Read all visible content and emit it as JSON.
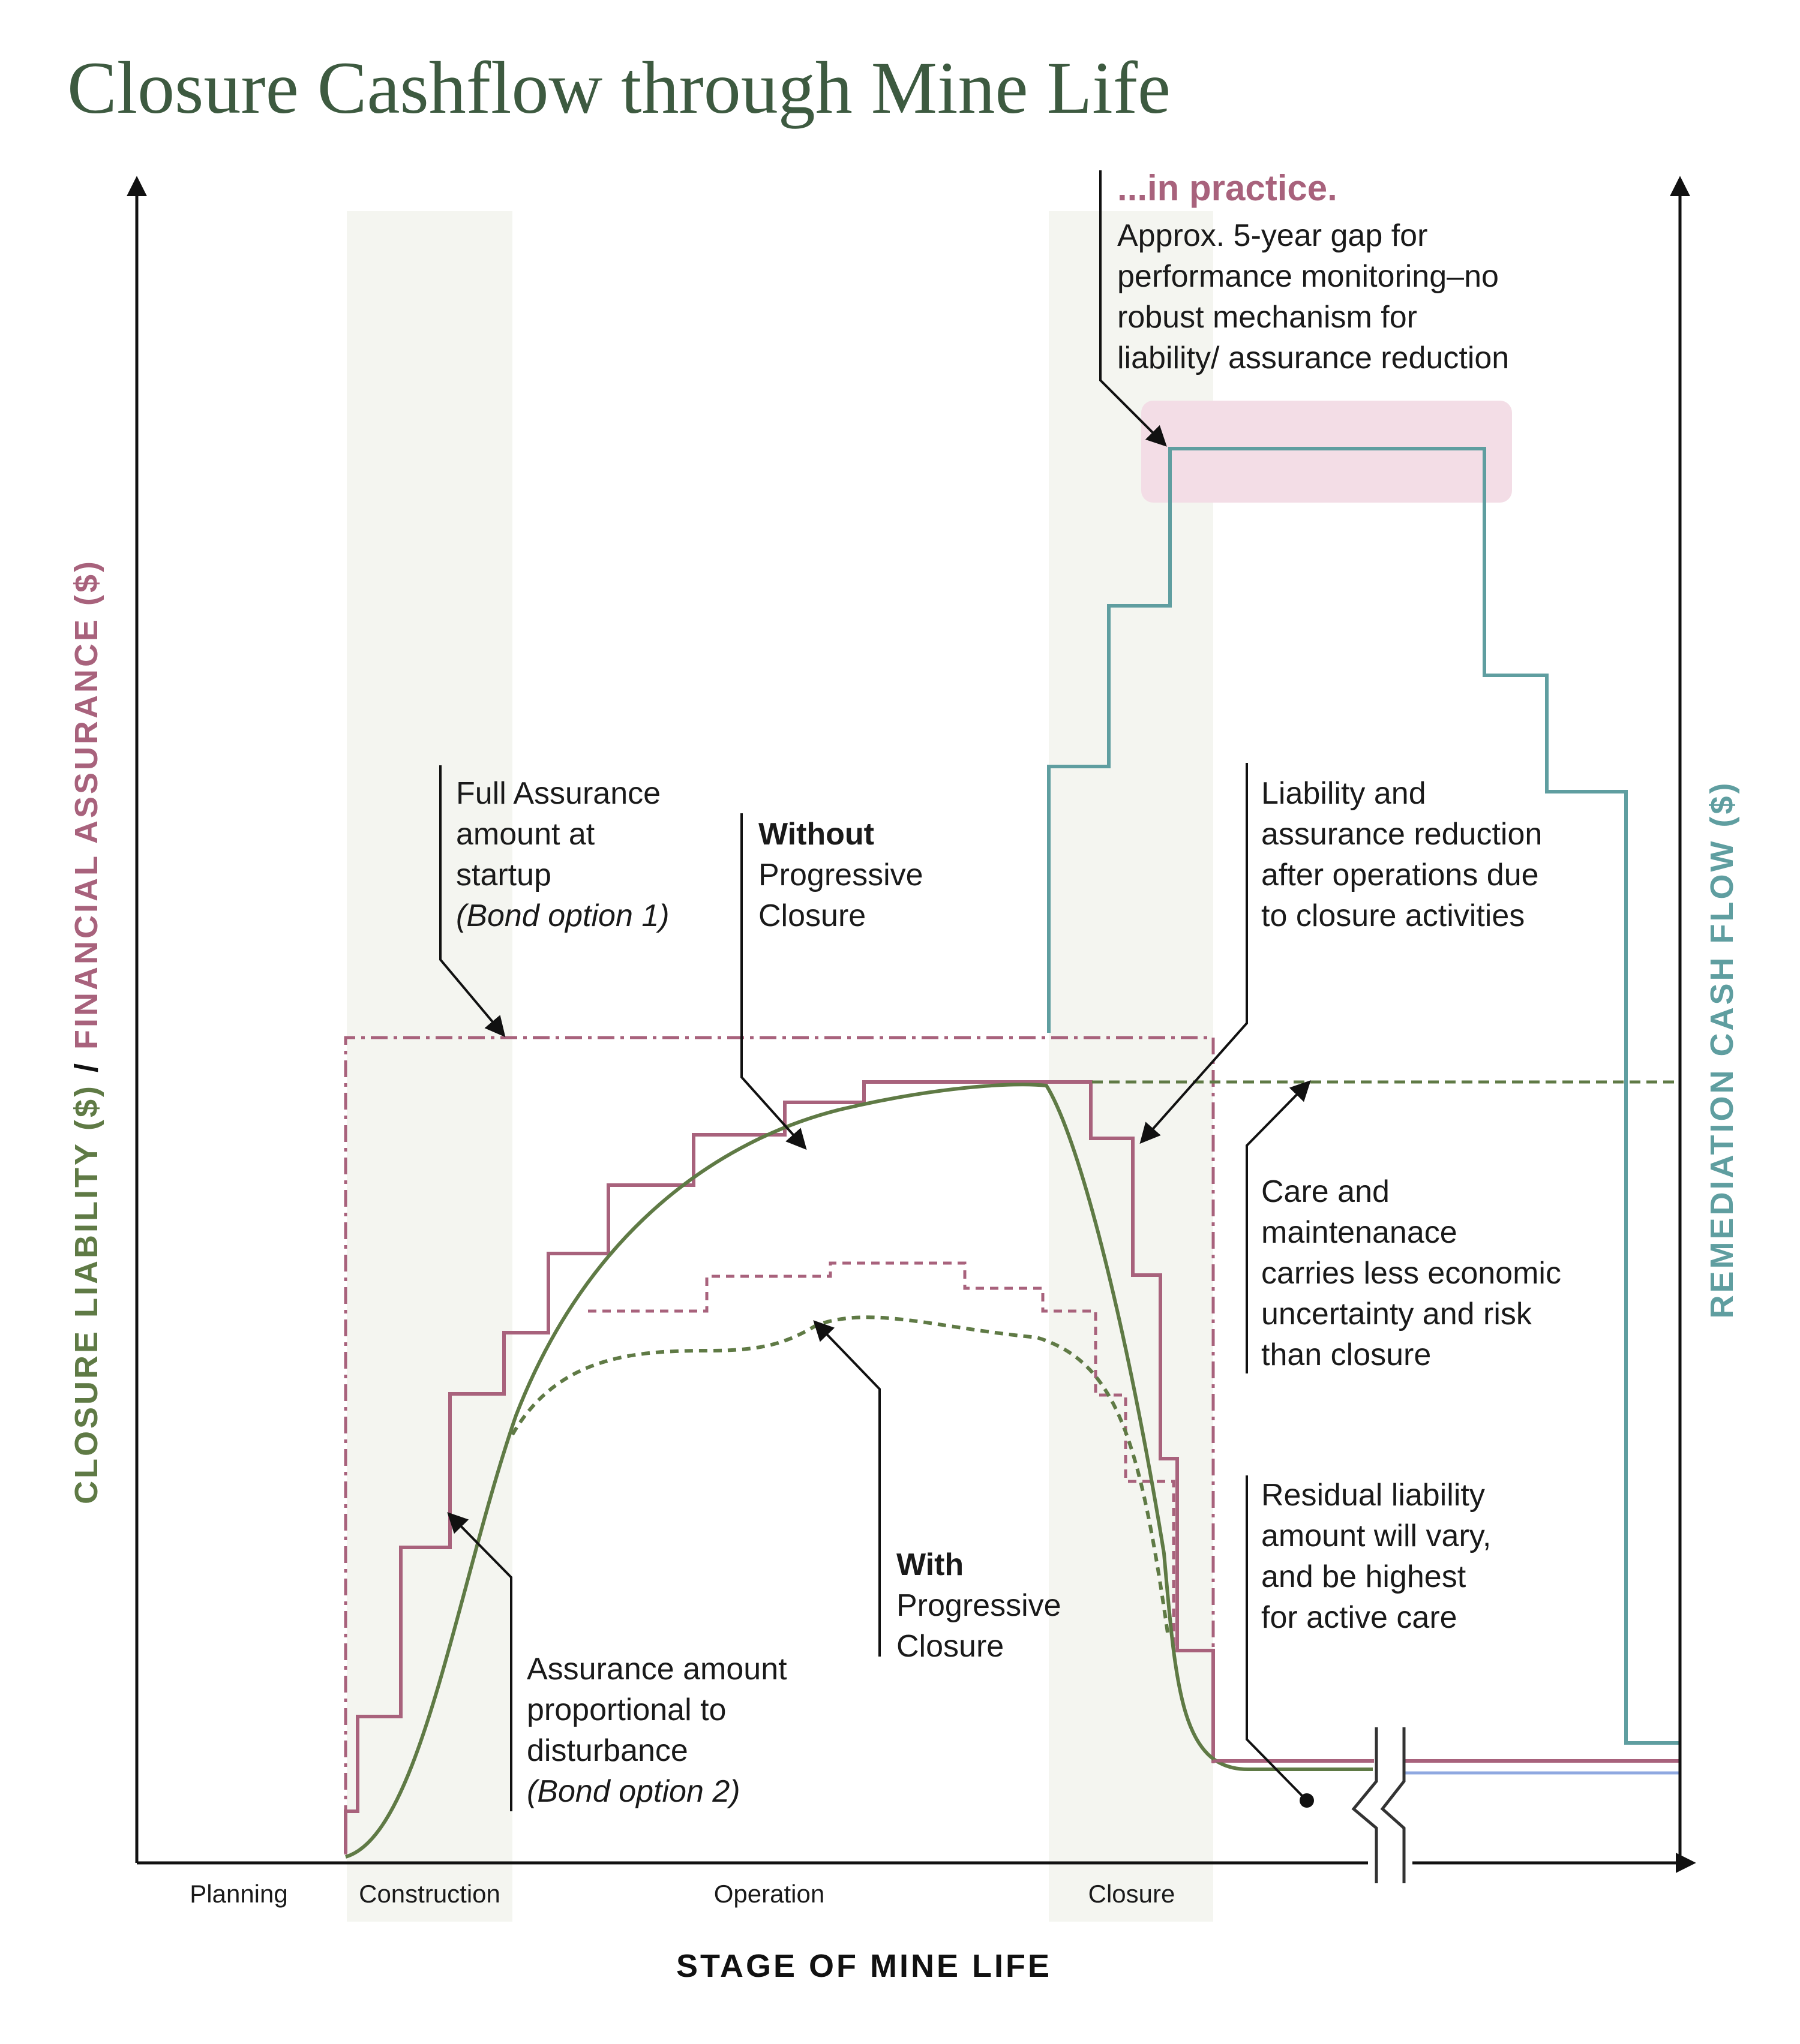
{
  "title": "Closure Cashflow through Mine Life",
  "colors": {
    "title": "#3d5a40",
    "liability_green": "#5f7a45",
    "assurance_mauve": "#a8627c",
    "remediation_teal": "#5f9ea0",
    "highlight_pink": "#f3dde6",
    "shade": "#f4f5f0",
    "practice_mauve": "#a8627c",
    "residual_blue": "#8fa8e0"
  },
  "axes": {
    "y_left_part1": "CLOSURE LIABILITY ($)",
    "y_left_sep": " / ",
    "y_left_part2": "FINANCIAL ASSURANCE ($)",
    "y_right": "REMEDIATION CASH FLOW ($)",
    "x": "STAGE OF MINE LIFE"
  },
  "stages": [
    "Planning",
    "Construction",
    "Operation",
    "Closure"
  ],
  "annotations": {
    "practice": {
      "heading": "...in practice.",
      "lines": [
        "Approx. 5-year gap for",
        "performance monitoring–no",
        "robust mechanism for",
        "liability/ assurance reduction"
      ]
    },
    "full_assurance": {
      "lines": [
        "Full Assurance",
        "amount at",
        "startup"
      ],
      "italic": "(Bond option 1)"
    },
    "without": {
      "bold": "Without",
      "lines": [
        "Progressive",
        "Closure"
      ]
    },
    "reduction": {
      "lines": [
        "Liability and",
        "assurance reduction",
        "after operations due",
        "to closure activities"
      ]
    },
    "care": {
      "lines": [
        "Care and",
        "maintenanace",
        "carries less economic",
        "uncertainty and risk",
        "than closure"
      ]
    },
    "residual": {
      "lines": [
        "Residual liability",
        "amount will vary,",
        "and be highest",
        "for active care"
      ]
    },
    "with": {
      "bold": "With",
      "lines": [
        "Progressive",
        "Closure"
      ]
    },
    "proportional": {
      "lines": [
        "Assurance amount",
        "proportional to",
        "disturbance"
      ],
      "italic": "(Bond option 2)"
    }
  }
}
